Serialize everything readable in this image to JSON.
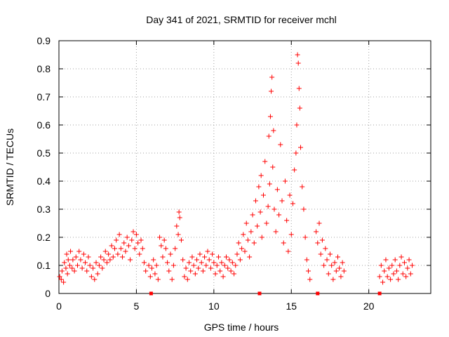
{
  "chart_data": {
    "type": "scatter",
    "title": "Day 341 of 2021, SRMTID for receiver mchl",
    "xlabel": "GPS time / hours",
    "ylabel": "SRMTID / TECUs",
    "xlim": [
      0,
      24
    ],
    "ylim": [
      0,
      0.9
    ],
    "xticks": [
      0,
      5,
      10,
      15,
      20
    ],
    "yticks": [
      0,
      0.1,
      0.2,
      0.3,
      0.4,
      0.5,
      0.6,
      0.7,
      0.8,
      0.9
    ],
    "xtick_labels": [
      "0",
      "5",
      "10",
      "15",
      "20"
    ],
    "ytick_labels": [
      "0",
      "0.1",
      "0.2",
      "0.3",
      "0.4",
      "0.5",
      "0.6",
      "0.7",
      "0.8",
      "0.9"
    ],
    "grid": true,
    "marker": "+",
    "color": "#ff0000",
    "series": [
      {
        "name": "SRMTID",
        "points": [
          [
            0.05,
            0.06
          ],
          [
            0.15,
            0.05
          ],
          [
            0.2,
            0.08
          ],
          [
            0.3,
            0.04
          ],
          [
            0.35,
            0.11
          ],
          [
            0.45,
            0.09
          ],
          [
            0.5,
            0.14
          ],
          [
            0.55,
            0.07
          ],
          [
            0.6,
            0.12
          ],
          [
            0.7,
            0.1
          ],
          [
            0.75,
            0.15
          ],
          [
            0.85,
            0.09
          ],
          [
            0.9,
            0.12
          ],
          [
            1.0,
            0.08
          ],
          [
            1.1,
            0.13
          ],
          [
            1.2,
            0.1
          ],
          [
            1.3,
            0.15
          ],
          [
            1.4,
            0.12
          ],
          [
            1.5,
            0.09
          ],
          [
            1.6,
            0.14
          ],
          [
            1.7,
            0.11
          ],
          [
            1.8,
            0.08
          ],
          [
            1.9,
            0.13
          ],
          [
            2.0,
            0.1
          ],
          [
            2.1,
            0.06
          ],
          [
            2.2,
            0.09
          ],
          [
            2.3,
            0.05
          ],
          [
            2.4,
            0.11
          ],
          [
            2.5,
            0.07
          ],
          [
            2.6,
            0.1
          ],
          [
            2.7,
            0.13
          ],
          [
            2.8,
            0.09
          ],
          [
            2.9,
            0.12
          ],
          [
            3.0,
            0.15
          ],
          [
            3.1,
            0.11
          ],
          [
            3.2,
            0.14
          ],
          [
            3.3,
            0.12
          ],
          [
            3.4,
            0.17
          ],
          [
            3.5,
            0.13
          ],
          [
            3.6,
            0.16
          ],
          [
            3.7,
            0.19
          ],
          [
            3.8,
            0.14
          ],
          [
            3.9,
            0.21
          ],
          [
            4.0,
            0.16
          ],
          [
            4.1,
            0.13
          ],
          [
            4.2,
            0.18
          ],
          [
            4.3,
            0.15
          ],
          [
            4.4,
            0.2
          ],
          [
            4.5,
            0.17
          ],
          [
            4.6,
            0.12
          ],
          [
            4.7,
            0.19
          ],
          [
            4.8,
            0.22
          ],
          [
            4.9,
            0.16
          ],
          [
            5.0,
            0.21
          ],
          [
            5.1,
            0.18
          ],
          [
            5.2,
            0.14
          ],
          [
            5.3,
            0.19
          ],
          [
            5.4,
            0.16
          ],
          [
            5.5,
            0.11
          ],
          [
            5.6,
            0.08
          ],
          [
            5.8,
            0.1
          ],
          [
            5.9,
            0.06
          ],
          [
            6.0,
            0.09
          ],
          [
            6.1,
            0.12
          ],
          [
            6.2,
            0.07
          ],
          [
            6.3,
            0.1
          ],
          [
            6.4,
            0.05
          ],
          [
            6.5,
            0.2
          ],
          [
            6.6,
            0.17
          ],
          [
            6.7,
            0.13
          ],
          [
            6.8,
            0.19
          ],
          [
            6.9,
            0.16
          ],
          [
            7.0,
            0.11
          ],
          [
            7.1,
            0.08
          ],
          [
            7.2,
            0.14
          ],
          [
            7.3,
            0.05
          ],
          [
            7.4,
            0.1
          ],
          [
            7.5,
            0.16
          ],
          [
            7.6,
            0.24
          ],
          [
            7.7,
            0.21
          ],
          [
            7.75,
            0.29
          ],
          [
            7.8,
            0.27
          ],
          [
            7.9,
            0.19
          ],
          [
            8.0,
            0.12
          ],
          [
            8.1,
            0.06
          ],
          [
            8.2,
            0.09
          ],
          [
            8.3,
            0.05
          ],
          [
            8.4,
            0.11
          ],
          [
            8.5,
            0.08
          ],
          [
            8.6,
            0.13
          ],
          [
            8.7,
            0.1
          ],
          [
            8.8,
            0.07
          ],
          [
            8.9,
            0.12
          ],
          [
            9.0,
            0.09
          ],
          [
            9.1,
            0.14
          ],
          [
            9.2,
            0.11
          ],
          [
            9.3,
            0.08
          ],
          [
            9.4,
            0.13
          ],
          [
            9.5,
            0.1
          ],
          [
            9.6,
            0.15
          ],
          [
            9.7,
            0.12
          ],
          [
            9.8,
            0.09
          ],
          [
            9.9,
            0.14
          ],
          [
            10.0,
            0.11
          ],
          [
            10.1,
            0.07
          ],
          [
            10.2,
            0.1
          ],
          [
            10.3,
            0.13
          ],
          [
            10.4,
            0.08
          ],
          [
            10.5,
            0.11
          ],
          [
            10.6,
            0.06
          ],
          [
            10.7,
            0.1
          ],
          [
            10.8,
            0.13
          ],
          [
            10.9,
            0.09
          ],
          [
            11.0,
            0.12
          ],
          [
            11.1,
            0.08
          ],
          [
            11.2,
            0.11
          ],
          [
            11.3,
            0.07
          ],
          [
            11.4,
            0.1
          ],
          [
            11.5,
            0.14
          ],
          [
            11.6,
            0.18
          ],
          [
            11.7,
            0.12
          ],
          [
            11.8,
            0.16
          ],
          [
            11.9,
            0.21
          ],
          [
            12.0,
            0.15
          ],
          [
            12.1,
            0.25
          ],
          [
            12.2,
            0.19
          ],
          [
            12.3,
            0.13
          ],
          [
            12.4,
            0.22
          ],
          [
            12.5,
            0.28
          ],
          [
            12.6,
            0.18
          ],
          [
            12.7,
            0.33
          ],
          [
            12.8,
            0.24
          ],
          [
            12.9,
            0.38
          ],
          [
            13.0,
            0.29
          ],
          [
            13.05,
            0.42
          ],
          [
            13.1,
            0.2
          ],
          [
            13.2,
            0.35
          ],
          [
            13.3,
            0.47
          ],
          [
            13.4,
            0.25
          ],
          [
            13.5,
            0.31
          ],
          [
            13.55,
            0.56
          ],
          [
            13.6,
            0.39
          ],
          [
            13.65,
            0.63
          ],
          [
            13.7,
            0.72
          ],
          [
            13.75,
            0.77
          ],
          [
            13.8,
            0.45
          ],
          [
            13.85,
            0.58
          ],
          [
            13.9,
            0.3
          ],
          [
            14.0,
            0.22
          ],
          [
            14.1,
            0.37
          ],
          [
            14.2,
            0.28
          ],
          [
            14.3,
            0.53
          ],
          [
            14.4,
            0.33
          ],
          [
            14.5,
            0.18
          ],
          [
            14.6,
            0.4
          ],
          [
            14.7,
            0.26
          ],
          [
            14.8,
            0.15
          ],
          [
            14.9,
            0.35
          ],
          [
            15.0,
            0.21
          ],
          [
            15.1,
            0.32
          ],
          [
            15.2,
            0.44
          ],
          [
            15.3,
            0.5
          ],
          [
            15.35,
            0.6
          ],
          [
            15.4,
            0.85
          ],
          [
            15.45,
            0.82
          ],
          [
            15.5,
            0.73
          ],
          [
            15.55,
            0.66
          ],
          [
            15.6,
            0.52
          ],
          [
            15.7,
            0.38
          ],
          [
            15.8,
            0.3
          ],
          [
            15.9,
            0.2
          ],
          [
            16.0,
            0.12
          ],
          [
            16.1,
            0.08
          ],
          [
            16.2,
            0.05
          ],
          [
            16.6,
            0.22
          ],
          [
            16.7,
            0.18
          ],
          [
            16.8,
            0.25
          ],
          [
            16.9,
            0.14
          ],
          [
            17.0,
            0.19
          ],
          [
            17.1,
            0.1
          ],
          [
            17.2,
            0.16
          ],
          [
            17.3,
            0.12
          ],
          [
            17.4,
            0.07
          ],
          [
            17.5,
            0.14
          ],
          [
            17.6,
            0.1
          ],
          [
            17.7,
            0.05
          ],
          [
            17.8,
            0.11
          ],
          [
            17.9,
            0.08
          ],
          [
            18.0,
            0.13
          ],
          [
            18.1,
            0.09
          ],
          [
            18.2,
            0.06
          ],
          [
            18.3,
            0.11
          ],
          [
            18.4,
            0.08
          ],
          [
            20.7,
            0.06
          ],
          [
            20.8,
            0.1
          ],
          [
            20.9,
            0.04
          ],
          [
            21.0,
            0.08
          ],
          [
            21.1,
            0.12
          ],
          [
            21.2,
            0.06
          ],
          [
            21.3,
            0.09
          ],
          [
            21.4,
            0.05
          ],
          [
            21.5,
            0.1
          ],
          [
            21.6,
            0.07
          ],
          [
            21.7,
            0.12
          ],
          [
            21.8,
            0.08
          ],
          [
            21.9,
            0.05
          ],
          [
            22.0,
            0.1
          ],
          [
            22.1,
            0.13
          ],
          [
            22.2,
            0.07
          ],
          [
            22.3,
            0.11
          ],
          [
            22.4,
            0.06
          ],
          [
            22.5,
            0.09
          ],
          [
            22.6,
            0.12
          ],
          [
            22.7,
            0.07
          ],
          [
            22.8,
            0.1
          ]
        ]
      }
    ],
    "gap_markers_x": [
      5.95,
      12.95,
      16.7,
      20.7
    ]
  }
}
